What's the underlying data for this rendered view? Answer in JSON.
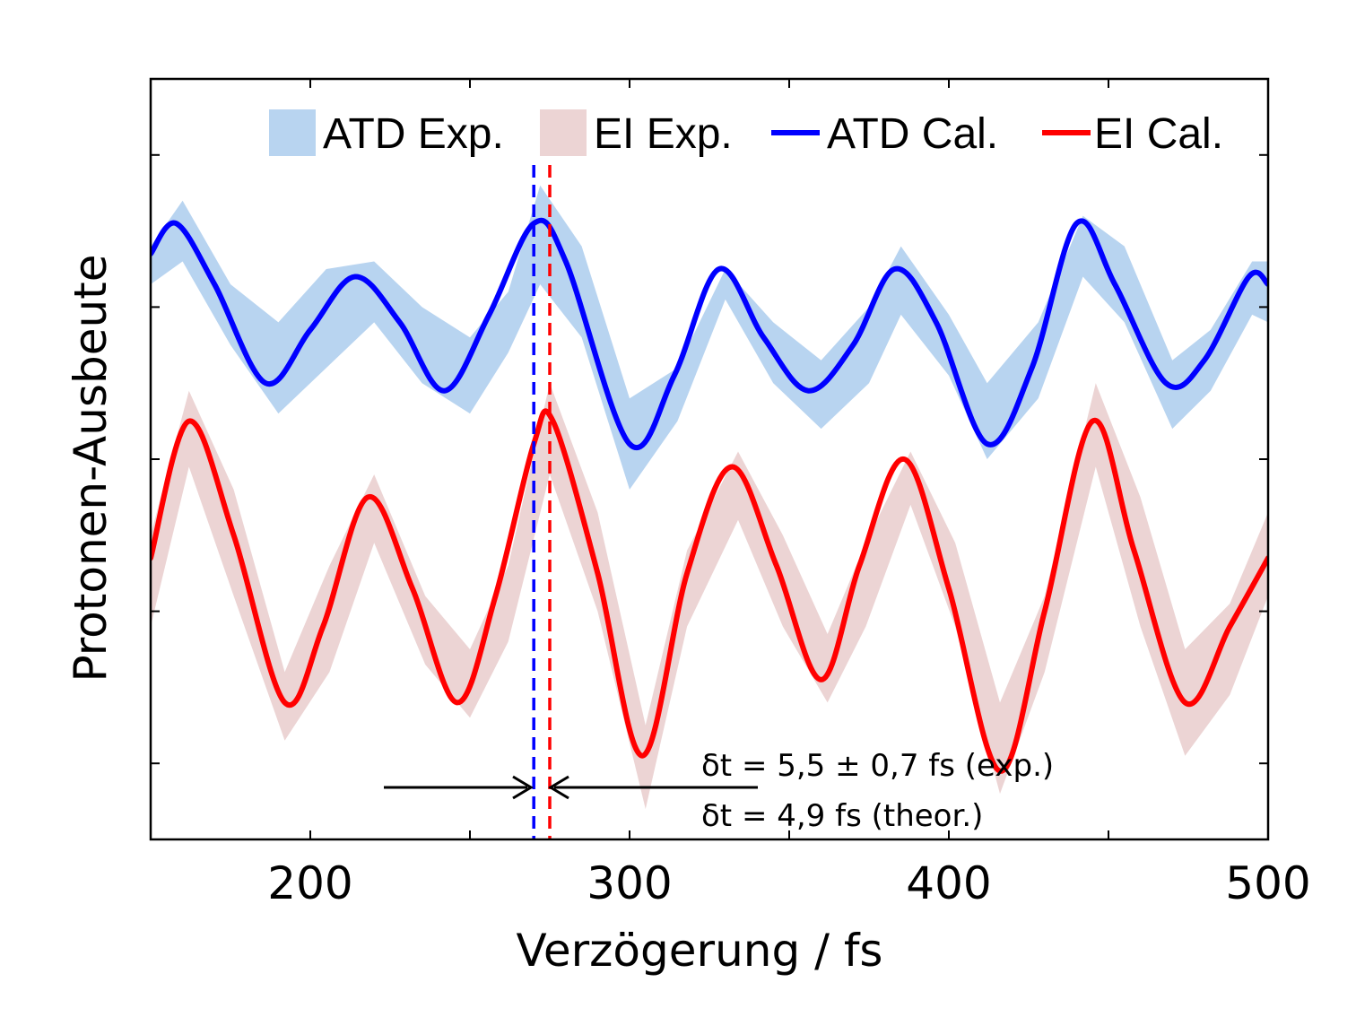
{
  "chart_data": {
    "type": "line",
    "xlabel": "Verzögerung / fs",
    "ylabel": "Protonen-Ausbeute",
    "xlim": [
      150,
      500
    ],
    "ylim": [
      0,
      10
    ],
    "x_ticks": [
      200,
      300,
      400,
      500
    ],
    "x_minor_ticks": [
      250,
      350,
      450
    ],
    "y_ticks_unlabeled": [
      1,
      3,
      5,
      7,
      9
    ],
    "grid": false,
    "legend_position": "top-right",
    "legend": [
      {
        "label": "ATD Exp.",
        "kind": "band",
        "color": "#b8d4f0"
      },
      {
        "label": "EI Exp.",
        "kind": "band",
        "color": "#ecd4d4"
      },
      {
        "label": "ATD Cal.",
        "kind": "line",
        "color": "#0000ff"
      },
      {
        "label": "EI Cal.",
        "kind": "line",
        "color": "#ff0000"
      }
    ],
    "series": [
      {
        "name": "ATD Cal.",
        "color": "#0000ff",
        "points": [
          [
            150,
            7.7
          ],
          [
            158,
            8.1
          ],
          [
            170,
            7.3
          ],
          [
            186,
            6.0
          ],
          [
            200,
            6.7
          ],
          [
            214,
            7.4
          ],
          [
            228,
            6.8
          ],
          [
            242,
            5.9
          ],
          [
            256,
            6.9
          ],
          [
            270,
            8.1
          ],
          [
            280,
            7.6
          ],
          [
            300,
            5.2
          ],
          [
            314,
            6.1
          ],
          [
            328,
            7.5
          ],
          [
            342,
            6.6
          ],
          [
            356,
            5.9
          ],
          [
            370,
            6.5
          ],
          [
            383,
            7.5
          ],
          [
            396,
            6.8
          ],
          [
            412,
            5.2
          ],
          [
            426,
            6.2
          ],
          [
            440,
            8.1
          ],
          [
            452,
            7.3
          ],
          [
            468,
            6.0
          ],
          [
            480,
            6.3
          ],
          [
            494,
            7.4
          ],
          [
            500,
            7.3
          ]
        ]
      },
      {
        "name": "EI Cal.",
        "color": "#ff0000",
        "points": [
          [
            150,
            3.7
          ],
          [
            162,
            5.5
          ],
          [
            176,
            4.0
          ],
          [
            192,
            1.8
          ],
          [
            204,
            2.8
          ],
          [
            218,
            4.5
          ],
          [
            232,
            3.3
          ],
          [
            246,
            1.8
          ],
          [
            258,
            3.2
          ],
          [
            270,
            5.2
          ],
          [
            276,
            5.5
          ],
          [
            290,
            3.5
          ],
          [
            304,
            1.1
          ],
          [
            318,
            3.5
          ],
          [
            332,
            4.9
          ],
          [
            346,
            3.6
          ],
          [
            360,
            2.1
          ],
          [
            372,
            3.6
          ],
          [
            386,
            5.0
          ],
          [
            400,
            3.3
          ],
          [
            416,
            0.9
          ],
          [
            430,
            3.0
          ],
          [
            445,
            5.5
          ],
          [
            458,
            3.8
          ],
          [
            474,
            1.8
          ],
          [
            488,
            2.8
          ],
          [
            500,
            3.7
          ]
        ]
      },
      {
        "name": "ATD Exp.",
        "color": "#b8d4f0",
        "band_upper": [
          [
            150,
            7.8
          ],
          [
            160,
            8.4
          ],
          [
            175,
            7.3
          ],
          [
            190,
            6.8
          ],
          [
            205,
            7.5
          ],
          [
            220,
            7.6
          ],
          [
            235,
            7.0
          ],
          [
            250,
            6.6
          ],
          [
            262,
            7.2
          ],
          [
            272,
            8.6
          ],
          [
            285,
            7.8
          ],
          [
            300,
            5.8
          ],
          [
            315,
            6.2
          ],
          [
            330,
            7.5
          ],
          [
            345,
            6.8
          ],
          [
            360,
            6.3
          ],
          [
            375,
            7.0
          ],
          [
            385,
            7.8
          ],
          [
            400,
            6.9
          ],
          [
            412,
            6.0
          ],
          [
            428,
            6.8
          ],
          [
            442,
            8.2
          ],
          [
            455,
            7.8
          ],
          [
            470,
            6.3
          ],
          [
            482,
            6.7
          ],
          [
            495,
            7.6
          ],
          [
            500,
            7.6
          ]
        ],
        "band_lower": [
          [
            150,
            7.3
          ],
          [
            160,
            7.6
          ],
          [
            175,
            6.5
          ],
          [
            190,
            5.6
          ],
          [
            205,
            6.2
          ],
          [
            220,
            6.8
          ],
          [
            235,
            6.0
          ],
          [
            250,
            5.6
          ],
          [
            262,
            6.4
          ],
          [
            272,
            7.3
          ],
          [
            285,
            6.6
          ],
          [
            300,
            4.6
          ],
          [
            315,
            5.5
          ],
          [
            330,
            7.1
          ],
          [
            345,
            6.0
          ],
          [
            360,
            5.4
          ],
          [
            375,
            6.0
          ],
          [
            385,
            6.9
          ],
          [
            400,
            6.1
          ],
          [
            412,
            5.0
          ],
          [
            428,
            5.8
          ],
          [
            442,
            7.4
          ],
          [
            455,
            6.8
          ],
          [
            470,
            5.4
          ],
          [
            482,
            5.9
          ],
          [
            495,
            6.9
          ],
          [
            500,
            6.8
          ]
        ]
      },
      {
        "name": "EI Exp.",
        "color": "#ecd4d4",
        "band_upper": [
          [
            150,
            4.0
          ],
          [
            162,
            5.9
          ],
          [
            176,
            4.6
          ],
          [
            192,
            2.2
          ],
          [
            206,
            3.6
          ],
          [
            220,
            4.8
          ],
          [
            236,
            3.2
          ],
          [
            250,
            2.5
          ],
          [
            262,
            3.6
          ],
          [
            275,
            6.0
          ],
          [
            290,
            4.3
          ],
          [
            305,
            1.5
          ],
          [
            318,
            3.8
          ],
          [
            334,
            5.1
          ],
          [
            348,
            4.0
          ],
          [
            362,
            2.7
          ],
          [
            374,
            3.9
          ],
          [
            388,
            5.1
          ],
          [
            402,
            3.9
          ],
          [
            416,
            1.8
          ],
          [
            430,
            3.2
          ],
          [
            446,
            6.0
          ],
          [
            460,
            4.5
          ],
          [
            474,
            2.5
          ],
          [
            488,
            3.1
          ],
          [
            500,
            4.3
          ]
        ],
        "band_lower": [
          [
            150,
            2.8
          ],
          [
            162,
            4.9
          ],
          [
            176,
            3.2
          ],
          [
            192,
            1.3
          ],
          [
            206,
            2.2
          ],
          [
            220,
            3.9
          ],
          [
            236,
            2.3
          ],
          [
            250,
            1.6
          ],
          [
            262,
            2.6
          ],
          [
            275,
            4.8
          ],
          [
            290,
            3.0
          ],
          [
            305,
            0.4
          ],
          [
            318,
            2.8
          ],
          [
            334,
            4.2
          ],
          [
            348,
            2.8
          ],
          [
            362,
            1.8
          ],
          [
            374,
            2.8
          ],
          [
            388,
            4.4
          ],
          [
            402,
            2.8
          ],
          [
            416,
            0.6
          ],
          [
            430,
            2.2
          ],
          [
            446,
            4.9
          ],
          [
            460,
            2.8
          ],
          [
            474,
            1.1
          ],
          [
            488,
            1.9
          ],
          [
            500,
            3.2
          ]
        ]
      }
    ],
    "markers": [
      {
        "x": 270,
        "color": "#0000ff",
        "style": "dashed"
      },
      {
        "x": 275,
        "color": "#ff0000",
        "style": "dashed"
      }
    ],
    "annotations": [
      {
        "text": "δt = 5,5 ± 0,7 fs (exp.)"
      },
      {
        "text": "δt = 4,9 fs (theor.)"
      }
    ]
  }
}
